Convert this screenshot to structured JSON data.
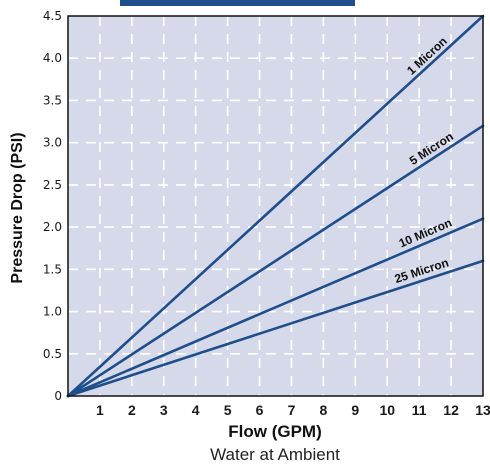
{
  "chart_data": {
    "type": "line",
    "title": "",
    "xlabel": "Flow (GPM)",
    "ylabel": "Pressure Drop (PSI)",
    "caption": "Water at Ambient",
    "xlim": [
      0,
      13
    ],
    "ylim": [
      0,
      4.5
    ],
    "x_ticks": [
      1,
      2,
      3,
      4,
      5,
      6,
      7,
      8,
      9,
      10,
      11,
      12,
      13
    ],
    "y_ticks": [
      "0",
      "0.5",
      "1.0",
      "1.5",
      "2.0",
      "2.5",
      "3.0",
      "3.5",
      "4.0",
      "4.5"
    ],
    "grid": true,
    "colors": {
      "plot_background": "#d6d9ea",
      "series_line": "#1f4e8c",
      "grid": "#ffffff",
      "frame": "#111111"
    },
    "series": [
      {
        "name": "1 Micron",
        "x": [
          0,
          13
        ],
        "y": [
          0,
          4.5
        ]
      },
      {
        "name": "5 Micron",
        "x": [
          0,
          13
        ],
        "y": [
          0,
          3.2
        ]
      },
      {
        "name": "10 Micron",
        "x": [
          0,
          13
        ],
        "y": [
          0,
          2.1
        ]
      },
      {
        "name": "25 Micron",
        "x": [
          0,
          13
        ],
        "y": [
          0,
          1.6
        ]
      }
    ]
  }
}
